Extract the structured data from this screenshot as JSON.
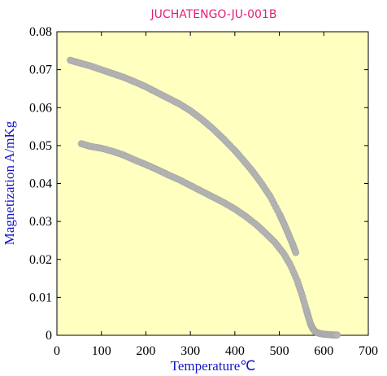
{
  "chart_data": {
    "type": "scatter",
    "title": "JUCHATENGO-JU-001B",
    "xlabel": "Temperature℃",
    "ylabel": "Magnetization A/mKg",
    "xlim": [
      0,
      700
    ],
    "ylim": [
      0,
      0.08
    ],
    "x_ticks": [
      0,
      100,
      200,
      300,
      400,
      500,
      600,
      700
    ],
    "y_ticks": [
      0,
      0.01,
      0.02,
      0.03,
      0.04,
      0.05,
      0.06,
      0.07,
      0.08
    ],
    "x_tick_labels": [
      "0",
      "100",
      "200",
      "300",
      "400",
      "500",
      "600",
      "700"
    ],
    "y_tick_labels": [
      "0",
      "0.01",
      "0.02",
      "0.03",
      "0.04",
      "0.05",
      "0.06",
      "0.07",
      "0.08"
    ],
    "grid": false,
    "plot_background": "#ffffc0",
    "marker_color": "#b4b4b4",
    "series": [
      {
        "x": [
          30,
          50,
          75,
          100,
          125,
          150,
          175,
          200,
          225,
          250,
          275,
          300,
          325,
          350,
          375,
          400,
          420,
          440,
          460,
          480,
          500,
          510,
          520,
          530,
          537
        ],
        "y": [
          0.0725,
          0.0718,
          0.071,
          0.07,
          0.069,
          0.068,
          0.0668,
          0.0655,
          0.064,
          0.0625,
          0.061,
          0.0592,
          0.057,
          0.0545,
          0.0517,
          0.0487,
          0.046,
          0.0432,
          0.04,
          0.0365,
          0.032,
          0.0295,
          0.0268,
          0.024,
          0.0218
        ]
      },
      {
        "x": [
          55,
          75,
          100,
          125,
          150,
          175,
          200,
          225,
          250,
          275,
          300,
          325,
          350,
          375,
          400,
          425,
          450,
          470,
          490,
          510,
          525,
          540,
          550,
          560,
          565,
          570,
          575,
          580,
          590,
          600,
          610,
          620,
          630
        ],
        "y": [
          0.0505,
          0.0498,
          0.0493,
          0.0485,
          0.0475,
          0.0462,
          0.045,
          0.0437,
          0.0423,
          0.041,
          0.0395,
          0.038,
          0.0365,
          0.035,
          0.0333,
          0.0313,
          0.029,
          0.0268,
          0.0245,
          0.0215,
          0.0185,
          0.0145,
          0.011,
          0.007,
          0.005,
          0.003,
          0.0018,
          0.001,
          0.0005,
          0.0003,
          0.0002,
          0.0001,
          0.0001
        ]
      }
    ]
  }
}
